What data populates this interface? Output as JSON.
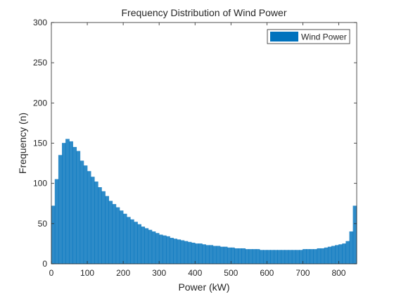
{
  "chart_data": {
    "type": "bar",
    "title": "Frequency Distribution of Wind Power",
    "xlabel": "Power (kW)",
    "ylabel": "Frequency (n)",
    "xlim": [
      0,
      850
    ],
    "ylim": [
      0,
      300
    ],
    "xticks": [
      "0",
      "100",
      "200",
      "300",
      "400",
      "500",
      "600",
      "700",
      "800"
    ],
    "yticks": [
      "0",
      "50",
      "100",
      "150",
      "200",
      "250",
      "300"
    ],
    "grid": false,
    "legend": {
      "placement": "top-right",
      "entries": [
        "Wind Power"
      ]
    },
    "series": [
      {
        "name": "Wind Power",
        "color": "#0072BD",
        "bin_width_kW": 10,
        "x": [
          5,
          15,
          25,
          35,
          45,
          55,
          65,
          75,
          85,
          95,
          105,
          115,
          125,
          135,
          145,
          155,
          165,
          175,
          185,
          195,
          205,
          215,
          225,
          235,
          245,
          255,
          265,
          275,
          285,
          295,
          305,
          315,
          325,
          335,
          345,
          355,
          365,
          375,
          385,
          395,
          405,
          415,
          425,
          435,
          445,
          455,
          465,
          475,
          485,
          495,
          505,
          515,
          525,
          535,
          545,
          555,
          565,
          575,
          585,
          595,
          605,
          615,
          625,
          635,
          645,
          655,
          665,
          675,
          685,
          695,
          705,
          715,
          725,
          735,
          745,
          755,
          765,
          775,
          785,
          795,
          805,
          815,
          825,
          835,
          845
        ],
        "values": [
          72,
          105,
          135,
          150,
          155,
          152,
          145,
          140,
          128,
          122,
          115,
          108,
          102,
          95,
          90,
          84,
          78,
          74,
          70,
          66,
          62,
          58,
          55,
          52,
          49,
          46,
          44,
          42,
          40,
          38,
          36,
          35,
          34,
          32,
          31,
          30,
          29,
          28,
          27,
          26,
          25,
          25,
          24,
          23,
          23,
          22,
          22,
          21,
          21,
          20,
          20,
          19,
          19,
          19,
          18,
          18,
          18,
          18,
          17,
          17,
          17,
          17,
          17,
          17,
          17,
          17,
          17,
          17,
          17,
          17,
          18,
          18,
          18,
          18,
          19,
          19,
          20,
          21,
          22,
          23,
          24,
          25,
          28,
          40,
          72
        ]
      }
    ]
  }
}
